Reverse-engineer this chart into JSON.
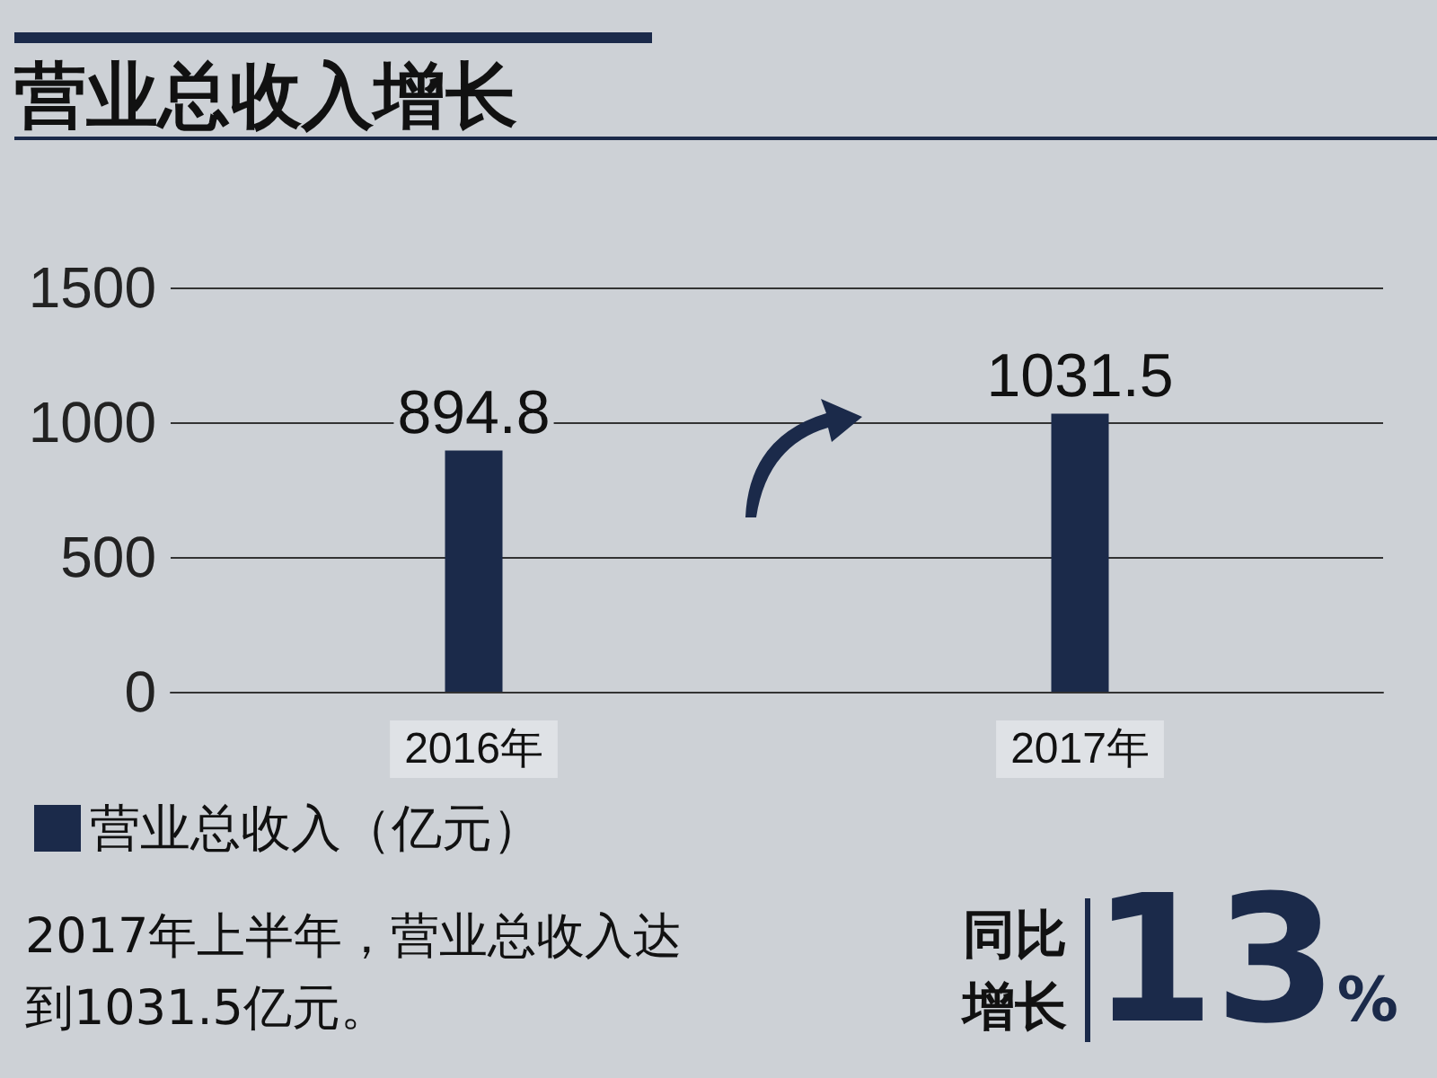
{
  "chart_data": {
    "type": "bar",
    "title": "营业总收入增长",
    "categories": [
      "2016年",
      "2017年"
    ],
    "series": [
      {
        "name": "营业总收入（亿元）",
        "color": "#1b2a4a",
        "values": [
          894.8,
          1031.5
        ]
      }
    ],
    "ylim": [
      0,
      1500
    ],
    "yticks": [
      0,
      500,
      1000,
      1500
    ],
    "grid": "y",
    "legend": "bottom left",
    "data_labels": true,
    "annotations": [
      "2017年上半年，营业总收入达到1031.5亿元。",
      "同比增长",
      "13%"
    ]
  }
}
